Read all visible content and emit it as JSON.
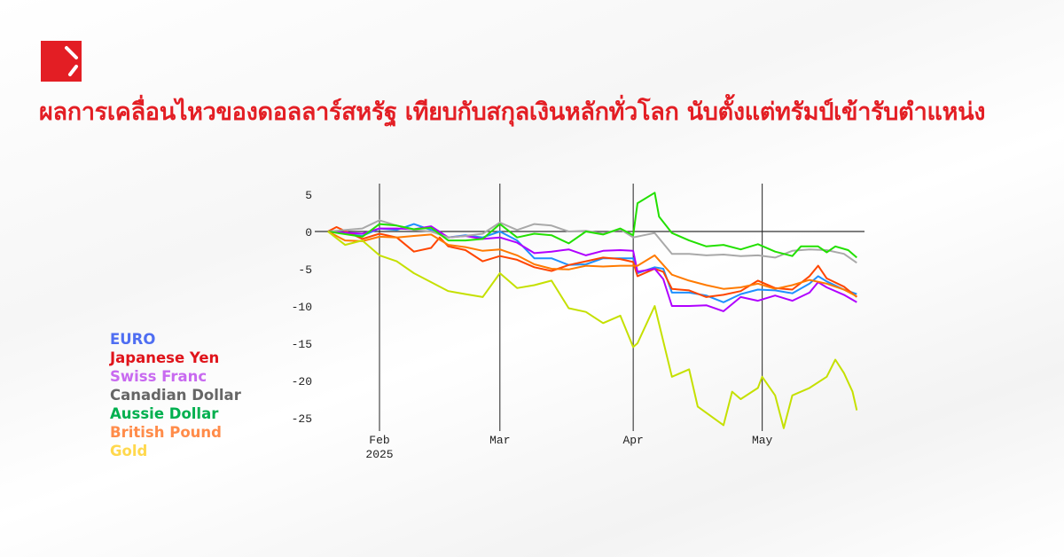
{
  "header": {
    "title": "ผลการเคลื่อนไหวของดอลลาร์สหรัฐ เทียบกับสกุลเงินหลักทั่วโลก นับตั้งแต่ทรัมป์เข้ารับตำแหน่ง",
    "logo_icon": "red-square-slash-logo",
    "title_color": "#e31e24"
  },
  "legend": [
    {
      "label": "EURO",
      "color": "#4f6ef2"
    },
    {
      "label": "Japanese Yen",
      "color": "#e0141b"
    },
    {
      "label": "Swiss Franc",
      "color": "#c86af0"
    },
    {
      "label": "Canadian Dollar",
      "color": "#666666"
    },
    {
      "label": "Aussie Dollar",
      "color": "#00b04f"
    },
    {
      "label": "British Pound",
      "color": "#ff8c4a"
    },
    {
      "label": "Gold",
      "color": "#ffd84d"
    }
  ],
  "chart_data": {
    "type": "line",
    "title": "",
    "xlabel": "",
    "ylabel": "",
    "ylim": [
      -26.5,
      5.5
    ],
    "xlim": [
      "2025-01-17",
      "2025-06-05"
    ],
    "yticks": [
      5,
      0,
      -5,
      -10,
      -15,
      -20,
      -25
    ],
    "ytick_labels": [
      "5",
      "0",
      "-5",
      "-10",
      "-15",
      "-20",
      "-25"
    ],
    "xticks": [
      {
        "date": "2025-02-01",
        "label": "Feb",
        "sublabel": "2025"
      },
      {
        "date": "2025-03-01",
        "label": "Mar",
        "sublabel": ""
      },
      {
        "date": "2025-04-01",
        "label": "Apr",
        "sublabel": ""
      },
      {
        "date": "2025-05-01",
        "label": "May",
        "sublabel": ""
      }
    ],
    "grid": "horizontal red lines, vertical month lines",
    "gridline_color": "#e8202a",
    "series": [
      {
        "name": "EURO",
        "color": "#1e90ff",
        "points": [
          [
            "2025-01-20",
            0
          ],
          [
            "2025-01-28",
            -0.6
          ],
          [
            "2025-02-01",
            0.4
          ],
          [
            "2025-02-05",
            0.2
          ],
          [
            "2025-02-09",
            1
          ],
          [
            "2025-02-13",
            0.2
          ],
          [
            "2025-02-17",
            -0.8
          ],
          [
            "2025-02-21",
            -0.5
          ],
          [
            "2025-02-25",
            -0.8
          ],
          [
            "2025-03-01",
            0
          ],
          [
            "2025-03-05",
            -1.2
          ],
          [
            "2025-03-09",
            -3.6
          ],
          [
            "2025-03-13",
            -3.6
          ],
          [
            "2025-03-17",
            -4.5
          ],
          [
            "2025-03-21",
            -4.4
          ],
          [
            "2025-03-25",
            -3.6
          ],
          [
            "2025-03-29",
            -3.6
          ],
          [
            "2025-04-01",
            -3.6
          ],
          [
            "2025-04-02",
            -5.6
          ],
          [
            "2025-04-06",
            -4.8
          ],
          [
            "2025-04-08",
            -5
          ],
          [
            "2025-04-10",
            -8.2
          ],
          [
            "2025-04-14",
            -8.2
          ],
          [
            "2025-04-18",
            -8.6
          ],
          [
            "2025-04-22",
            -9.5
          ],
          [
            "2025-04-26",
            -8.4
          ],
          [
            "2025-04-30",
            -7.8
          ],
          [
            "2025-05-04",
            -7.9
          ],
          [
            "2025-05-08",
            -8.3
          ],
          [
            "2025-05-12",
            -7
          ],
          [
            "2025-05-14",
            -6
          ],
          [
            "2025-05-16",
            -6.7
          ],
          [
            "2025-05-20",
            -7.8
          ],
          [
            "2025-05-23",
            -8.4
          ]
        ]
      },
      {
        "name": "Japanese Yen",
        "color": "#ff4500",
        "points": [
          [
            "2025-01-20",
            0
          ],
          [
            "2025-01-22",
            0.6
          ],
          [
            "2025-01-28",
            -1
          ],
          [
            "2025-02-01",
            -0.3
          ],
          [
            "2025-02-05",
            -0.8
          ],
          [
            "2025-02-09",
            -2.7
          ],
          [
            "2025-02-13",
            -2.2
          ],
          [
            "2025-02-15",
            -0.8
          ],
          [
            "2025-02-17",
            -2
          ],
          [
            "2025-02-21",
            -2.5
          ],
          [
            "2025-02-25",
            -4
          ],
          [
            "2025-03-01",
            -3.3
          ],
          [
            "2025-03-05",
            -3.8
          ],
          [
            "2025-03-09",
            -4.8
          ],
          [
            "2025-03-13",
            -5.3
          ],
          [
            "2025-03-17",
            -4.5
          ],
          [
            "2025-03-21",
            -4
          ],
          [
            "2025-03-25",
            -3.5
          ],
          [
            "2025-03-29",
            -3.7
          ],
          [
            "2025-04-01",
            -4.1
          ],
          [
            "2025-04-02",
            -6
          ],
          [
            "2025-04-06",
            -5
          ],
          [
            "2025-04-08",
            -5.4
          ],
          [
            "2025-04-10",
            -7.7
          ],
          [
            "2025-04-14",
            -7.9
          ],
          [
            "2025-04-18",
            -8.8
          ],
          [
            "2025-04-22",
            -8.5
          ],
          [
            "2025-04-26",
            -8
          ],
          [
            "2025-04-30",
            -6.6
          ],
          [
            "2025-05-04",
            -7.6
          ],
          [
            "2025-05-08",
            -7.8
          ],
          [
            "2025-05-12",
            -6
          ],
          [
            "2025-05-14",
            -4.6
          ],
          [
            "2025-05-16",
            -6.3
          ],
          [
            "2025-05-20",
            -7.4
          ],
          [
            "2025-05-23",
            -8.8
          ]
        ]
      },
      {
        "name": "Swiss Franc",
        "color": "#b000ff",
        "points": [
          [
            "2025-01-20",
            0
          ],
          [
            "2025-01-28",
            -0.3
          ],
          [
            "2025-02-01",
            0.4
          ],
          [
            "2025-02-05",
            0.4
          ],
          [
            "2025-02-09",
            0.3
          ],
          [
            "2025-02-13",
            0.7
          ],
          [
            "2025-02-17",
            -0.8
          ],
          [
            "2025-02-21",
            -0.6
          ],
          [
            "2025-02-25",
            -1
          ],
          [
            "2025-03-01",
            -0.8
          ],
          [
            "2025-03-05",
            -1.5
          ],
          [
            "2025-03-09",
            -2.9
          ],
          [
            "2025-03-13",
            -2.7
          ],
          [
            "2025-03-17",
            -2.4
          ],
          [
            "2025-03-21",
            -3.2
          ],
          [
            "2025-03-25",
            -2.6
          ],
          [
            "2025-03-29",
            -2.5
          ],
          [
            "2025-04-01",
            -2.6
          ],
          [
            "2025-04-02",
            -5.4
          ],
          [
            "2025-04-06",
            -5
          ],
          [
            "2025-04-08",
            -6.4
          ],
          [
            "2025-04-10",
            -10
          ],
          [
            "2025-04-14",
            -10
          ],
          [
            "2025-04-18",
            -9.9
          ],
          [
            "2025-04-22",
            -10.7
          ],
          [
            "2025-04-26",
            -8.8
          ],
          [
            "2025-04-30",
            -9.3
          ],
          [
            "2025-05-04",
            -8.6
          ],
          [
            "2025-05-08",
            -9.3
          ],
          [
            "2025-05-12",
            -8.2
          ],
          [
            "2025-05-14",
            -6.8
          ],
          [
            "2025-05-16",
            -7.5
          ],
          [
            "2025-05-20",
            -8.5
          ],
          [
            "2025-05-23",
            -9.5
          ]
        ]
      },
      {
        "name": "Canadian Dollar",
        "color": "#a9a9a9",
        "points": [
          [
            "2025-01-20",
            0
          ],
          [
            "2025-01-28",
            0.4
          ],
          [
            "2025-02-01",
            1.5
          ],
          [
            "2025-02-05",
            0.8
          ],
          [
            "2025-02-09",
            0.2
          ],
          [
            "2025-02-13",
            0
          ],
          [
            "2025-02-17",
            -0.8
          ],
          [
            "2025-02-21",
            -0.6
          ],
          [
            "2025-02-25",
            -0.3
          ],
          [
            "2025-03-01",
            1.2
          ],
          [
            "2025-03-05",
            0.2
          ],
          [
            "2025-03-09",
            1
          ],
          [
            "2025-03-13",
            0.8
          ],
          [
            "2025-03-17",
            0
          ],
          [
            "2025-03-21",
            0.1
          ],
          [
            "2025-03-25",
            -0.3
          ],
          [
            "2025-03-29",
            0.3
          ],
          [
            "2025-04-01",
            -0.8
          ],
          [
            "2025-04-06",
            -0.2
          ],
          [
            "2025-04-10",
            -3
          ],
          [
            "2025-04-14",
            -3
          ],
          [
            "2025-04-18",
            -3.2
          ],
          [
            "2025-04-22",
            -3.1
          ],
          [
            "2025-04-26",
            -3.3
          ],
          [
            "2025-04-30",
            -3.2
          ],
          [
            "2025-05-04",
            -3.5
          ],
          [
            "2025-05-08",
            -2.6
          ],
          [
            "2025-05-12",
            -2.4
          ],
          [
            "2025-05-16",
            -2.5
          ],
          [
            "2025-05-20",
            -3
          ],
          [
            "2025-05-23",
            -4.2
          ]
        ]
      },
      {
        "name": "Aussie Dollar",
        "color": "#22e000",
        "points": [
          [
            "2025-01-20",
            0
          ],
          [
            "2025-01-28",
            -0.7
          ],
          [
            "2025-02-01",
            1
          ],
          [
            "2025-02-05",
            0.8
          ],
          [
            "2025-02-09",
            0.3
          ],
          [
            "2025-02-13",
            0.5
          ],
          [
            "2025-02-17",
            -1.2
          ],
          [
            "2025-02-21",
            -1.2
          ],
          [
            "2025-02-25",
            -1
          ],
          [
            "2025-03-01",
            1
          ],
          [
            "2025-03-05",
            -0.8
          ],
          [
            "2025-03-09",
            -0.3
          ],
          [
            "2025-03-13",
            -0.5
          ],
          [
            "2025-03-17",
            -1.6
          ],
          [
            "2025-03-21",
            0
          ],
          [
            "2025-03-25",
            -0.4
          ],
          [
            "2025-03-29",
            0.4
          ],
          [
            "2025-04-01",
            -0.5
          ],
          [
            "2025-04-02",
            3.8
          ],
          [
            "2025-04-06",
            5.2
          ],
          [
            "2025-04-07",
            2
          ],
          [
            "2025-04-10",
            -0.2
          ],
          [
            "2025-04-14",
            -1.2
          ],
          [
            "2025-04-18",
            -2
          ],
          [
            "2025-04-22",
            -1.8
          ],
          [
            "2025-04-26",
            -2.4
          ],
          [
            "2025-04-30",
            -1.7
          ],
          [
            "2025-05-04",
            -2.7
          ],
          [
            "2025-05-08",
            -3.3
          ],
          [
            "2025-05-10",
            -2
          ],
          [
            "2025-05-14",
            -2
          ],
          [
            "2025-05-16",
            -2.8
          ],
          [
            "2025-05-18",
            -2
          ],
          [
            "2025-05-21",
            -2.5
          ],
          [
            "2025-05-23",
            -3.5
          ]
        ]
      },
      {
        "name": "British Pound",
        "color": "#ff7a00",
        "points": [
          [
            "2025-01-20",
            0
          ],
          [
            "2025-01-24",
            -1.2
          ],
          [
            "2025-01-28",
            -1.3
          ],
          [
            "2025-02-01",
            -0.7
          ],
          [
            "2025-02-05",
            -0.8
          ],
          [
            "2025-02-09",
            -0.6
          ],
          [
            "2025-02-13",
            -0.4
          ],
          [
            "2025-02-17",
            -1.8
          ],
          [
            "2025-02-21",
            -2.1
          ],
          [
            "2025-02-25",
            -2.6
          ],
          [
            "2025-03-01",
            -2.4
          ],
          [
            "2025-03-05",
            -3.2
          ],
          [
            "2025-03-09",
            -4.4
          ],
          [
            "2025-03-13",
            -5
          ],
          [
            "2025-03-17",
            -5.1
          ],
          [
            "2025-03-21",
            -4.6
          ],
          [
            "2025-03-25",
            -4.7
          ],
          [
            "2025-03-29",
            -4.6
          ],
          [
            "2025-04-02",
            -4.6
          ],
          [
            "2025-04-06",
            -3.2
          ],
          [
            "2025-04-10",
            -5.8
          ],
          [
            "2025-04-14",
            -6.6
          ],
          [
            "2025-04-18",
            -7.2
          ],
          [
            "2025-04-22",
            -7.7
          ],
          [
            "2025-04-26",
            -7.5
          ],
          [
            "2025-04-30",
            -7
          ],
          [
            "2025-05-04",
            -7.7
          ],
          [
            "2025-05-08",
            -7.2
          ],
          [
            "2025-05-12",
            -6.5
          ],
          [
            "2025-05-16",
            -7
          ],
          [
            "2025-05-20",
            -7.8
          ],
          [
            "2025-05-23",
            -8.7
          ]
        ]
      },
      {
        "name": "Gold",
        "color": "#c5e000",
        "points": [
          [
            "2025-01-20",
            0
          ],
          [
            "2025-01-24",
            -1.8
          ],
          [
            "2025-01-28",
            -1.2
          ],
          [
            "2025-02-01",
            -3.2
          ],
          [
            "2025-02-05",
            -4
          ],
          [
            "2025-02-09",
            -5.6
          ],
          [
            "2025-02-13",
            -6.8
          ],
          [
            "2025-02-17",
            -8
          ],
          [
            "2025-02-21",
            -8.4
          ],
          [
            "2025-02-25",
            -8.8
          ],
          [
            "2025-03-01",
            -5.6
          ],
          [
            "2025-03-05",
            -7.6
          ],
          [
            "2025-03-09",
            -7.2
          ],
          [
            "2025-03-13",
            -6.6
          ],
          [
            "2025-03-17",
            -10.3
          ],
          [
            "2025-03-21",
            -10.8
          ],
          [
            "2025-03-25",
            -12.3
          ],
          [
            "2025-03-29",
            -11.3
          ],
          [
            "2025-04-01",
            -15.5
          ],
          [
            "2025-04-02",
            -15
          ],
          [
            "2025-04-06",
            -10
          ],
          [
            "2025-04-10",
            -19.5
          ],
          [
            "2025-04-14",
            -18.5
          ],
          [
            "2025-04-16",
            -23.5
          ],
          [
            "2025-04-22",
            -26
          ],
          [
            "2025-04-24",
            -21.5
          ],
          [
            "2025-04-26",
            -22.5
          ],
          [
            "2025-04-30",
            -21
          ],
          [
            "2025-05-01",
            -19.5
          ],
          [
            "2025-05-04",
            -22
          ],
          [
            "2025-05-06",
            -26.4
          ],
          [
            "2025-05-08",
            -22
          ],
          [
            "2025-05-12",
            -21
          ],
          [
            "2025-05-16",
            -19.5
          ],
          [
            "2025-05-18",
            -17.2
          ],
          [
            "2025-05-20",
            -19
          ],
          [
            "2025-05-22",
            -21.5
          ],
          [
            "2025-05-23",
            -24
          ]
        ]
      }
    ]
  }
}
